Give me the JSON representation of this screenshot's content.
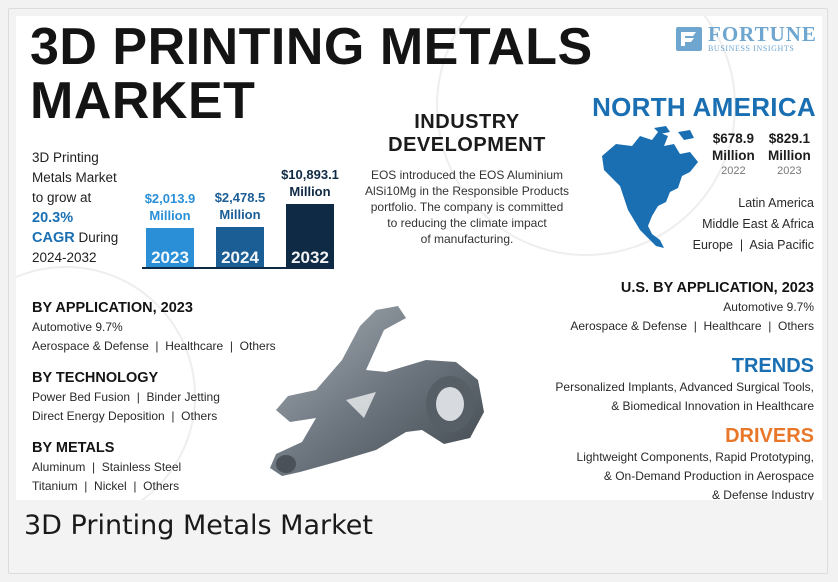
{
  "title_line1": "3D PRINTING METALS",
  "title_line2": "MARKET",
  "logo": {
    "main": "FORTUNE",
    "sub": "BUSINESS INSIGHTS",
    "color": "#6fa6d0"
  },
  "growth": {
    "line1": "3D Printing",
    "line2": "Metals Market",
    "line3": "to grow at",
    "cagr": "20.3%",
    "cagr_label": "CAGR",
    "during": "During",
    "period": "2024-2032"
  },
  "chart_data": {
    "type": "bar",
    "categories": [
      "2023",
      "2024",
      "2032"
    ],
    "values": [
      2013.9,
      2478.5,
      10893.1
    ],
    "labels": [
      "$2,013.9",
      "$2,478.5",
      "$10,893.1"
    ],
    "unit": "Million",
    "colors": [
      "#2a8fd6",
      "#1b5e96",
      "#0f2a44"
    ]
  },
  "industry": {
    "heading_line1": "INDUSTRY",
    "heading_line2": "DEVELOPMENT",
    "text_lines": [
      "EOS introduced the EOS Aluminium",
      "AlSi10Mg in the Responsible Products",
      "portfolio. The company is committed",
      "to reducing the climate impact",
      "of manufacturing."
    ]
  },
  "north_america": {
    "title": "NORTH AMERICA",
    "stats": [
      {
        "value": "$678.9",
        "unit": "Million",
        "year": "2022"
      },
      {
        "value": "$829.1",
        "unit": "Million",
        "year": "2023"
      }
    ],
    "regions": [
      "Latin America",
      "Middle East & Africa",
      "Europe  |  Asia Pacific"
    ],
    "accent": "#1a6fb3"
  },
  "by_application": {
    "heading": "BY APPLICATION, 2023",
    "line1": "Automotive 9.7%",
    "line2": "Aerospace & Defense  |  Healthcare  |  Others"
  },
  "by_technology": {
    "heading": "BY TECHNOLOGY",
    "line1": "Power Bed Fusion  |  Binder Jetting",
    "line2": "Direct Energy Deposition  |  Others"
  },
  "by_metals": {
    "heading": "BY METALS",
    "line1": "Aluminum  |  Stainless Steel",
    "line2": "Titanium  |  Nickel  |  Others"
  },
  "us_application": {
    "heading": "U.S. BY APPLICATION, 2023",
    "line1": "Automotive 9.7%",
    "line2": "Aerospace & Defense  |  Healthcare  |  Others"
  },
  "trends": {
    "heading": "TRENDS",
    "line1": "Personalized Implants, Advanced Surgical Tools,",
    "line2": "& Biomedical Innovation in Healthcare"
  },
  "drivers": {
    "heading": "DRIVERS",
    "line1": "Lightweight Components, Rapid Prototyping,",
    "line2": "& On-Demand Production in Aerospace",
    "line3": "& Defense Industry",
    "accent": "#e8772a"
  },
  "caption": "3D Printing Metals Market"
}
